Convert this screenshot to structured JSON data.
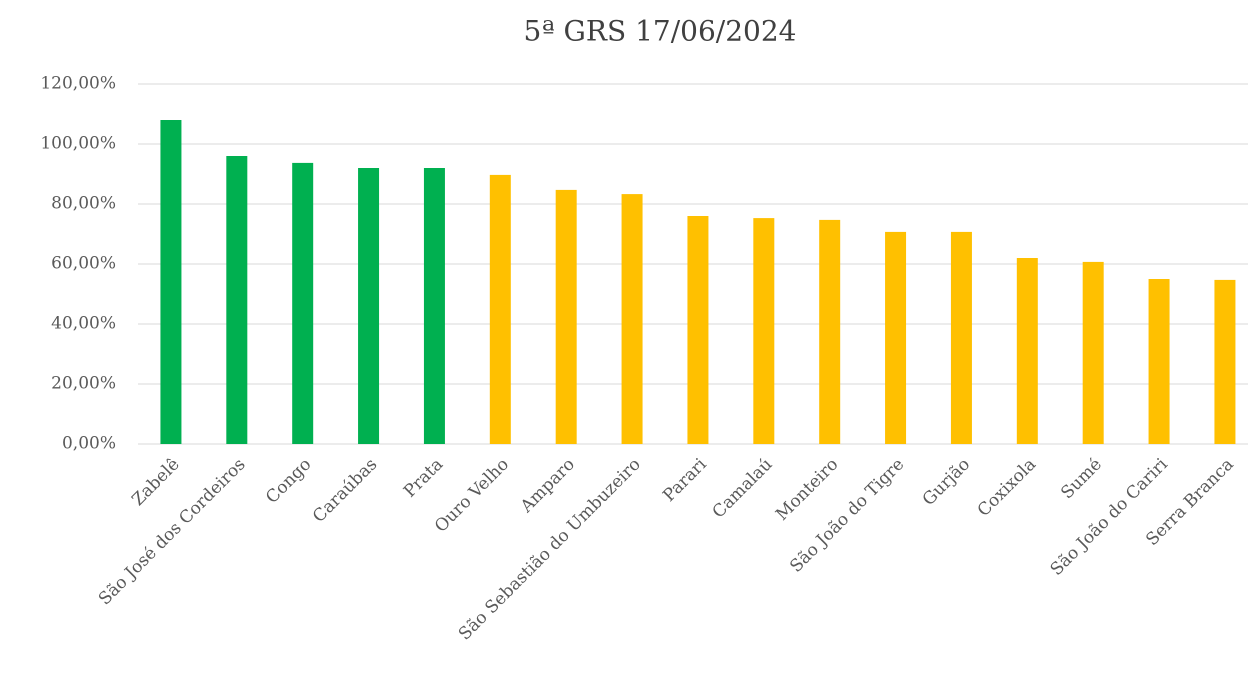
{
  "chart_data": {
    "type": "bar",
    "title": "5ª GRS 17/06/2024",
    "categories": [
      "Zabelê",
      "São José dos Cordeiros",
      "Congo",
      "Caraúbas",
      "Prata",
      "Ouro Velho",
      "Amparo",
      "São Sebastião do Umbuzeiro",
      "Parari",
      "Camalaú",
      "Monteiro",
      "São João do Tigre",
      "Gurjão",
      "Coxixola",
      "Sumé",
      "São João do Cariri",
      "Serra Branca"
    ],
    "values": [
      108,
      96,
      93.7,
      92,
      92,
      89.7,
      84.7,
      83.3,
      76,
      75.3,
      74.7,
      70.7,
      70.7,
      62,
      60.7,
      55,
      54.7
    ],
    "colors": [
      "#00b050",
      "#00b050",
      "#00b050",
      "#00b050",
      "#00b050",
      "#ffc000",
      "#ffc000",
      "#ffc000",
      "#ffc000",
      "#ffc000",
      "#ffc000",
      "#ffc000",
      "#ffc000",
      "#ffc000",
      "#ffc000",
      "#ffc000",
      "#ffc000"
    ],
    "ylim": [
      0,
      120
    ],
    "yticks": [
      {
        "value": 0,
        "label": "0,00%"
      },
      {
        "value": 20,
        "label": "20,00%"
      },
      {
        "value": 40,
        "label": "40,00%"
      },
      {
        "value": 60,
        "label": "60,00%"
      },
      {
        "value": 80,
        "label": "80,00%"
      },
      {
        "value": 100,
        "label": "100,00%"
      },
      {
        "value": 120,
        "label": "120,00%"
      }
    ],
    "grid": true
  }
}
